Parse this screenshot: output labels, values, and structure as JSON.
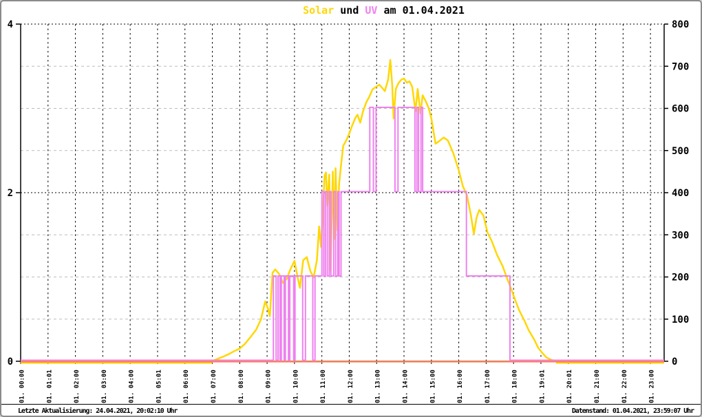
{
  "title": {
    "solar_label": "Solar",
    "und_label": " und ",
    "uv_label": "UV",
    "date_label": " am 01.04.2021"
  },
  "footer": {
    "left": "Letzte Aktualisierung: 24.04.2021, 20:02:10 Uhr",
    "right": "Datenstand: 01.04.2021, 23:59:07 Uhr"
  },
  "colors": {
    "solar": "#FFD700",
    "uv": "#EE82EE",
    "baseline": "#FF7F50",
    "grid_minor": "#BBBBBB",
    "grid_major": "#000000",
    "axis": "#000000",
    "text": "#000000",
    "border": "#8A8A8A"
  },
  "chart_data": {
    "type": "line",
    "title": "Solar und UV am 01.04.2021",
    "grid": "on",
    "x_axis": {
      "range_hours": [
        0,
        23.5
      ],
      "tick_labels": [
        "01. 00:00",
        "01. 01:01",
        "01. 02:00",
        "01. 03:00",
        "01. 04:00",
        "01. 05:01",
        "01. 06:00",
        "01. 07:00",
        "01. 08:00",
        "01. 09:00",
        "01. 10:00",
        "01. 11:00",
        "01. 12:00",
        "01. 13:00",
        "01. 14:00",
        "01. 15:00",
        "01. 16:00",
        "01. 17:00",
        "01. 18:00",
        "01. 19:01",
        "01. 20:01",
        "01. 21:00",
        "01. 22:00",
        "01. 23:00"
      ]
    },
    "y_left": {
      "range": [
        0,
        4
      ],
      "ticks": [
        0,
        2,
        4
      ]
    },
    "y_right": {
      "range": [
        0,
        800
      ],
      "ticks": [
        0,
        100,
        200,
        300,
        400,
        500,
        600,
        700,
        800
      ],
      "major_gridlines": [
        400,
        800
      ]
    },
    "series": [
      {
        "name": "Solar",
        "axis": "right",
        "style": "line",
        "points": [
          [
            0,
            0
          ],
          [
            6.9,
            0
          ],
          [
            7.05,
            2
          ],
          [
            7.2,
            6
          ],
          [
            7.4,
            11
          ],
          [
            7.6,
            17
          ],
          [
            7.8,
            24
          ],
          [
            8.0,
            30
          ],
          [
            8.2,
            42
          ],
          [
            8.4,
            58
          ],
          [
            8.6,
            75
          ],
          [
            8.78,
            100
          ],
          [
            8.93,
            142
          ],
          [
            9.03,
            125
          ],
          [
            9.1,
            107
          ],
          [
            9.2,
            210
          ],
          [
            9.3,
            218
          ],
          [
            9.45,
            206
          ],
          [
            9.58,
            186
          ],
          [
            9.72,
            196
          ],
          [
            9.85,
            218
          ],
          [
            10.0,
            238
          ],
          [
            10.12,
            198
          ],
          [
            10.2,
            174
          ],
          [
            10.32,
            240
          ],
          [
            10.45,
            247
          ],
          [
            10.58,
            214
          ],
          [
            10.7,
            199
          ],
          [
            10.82,
            240
          ],
          [
            10.9,
            320
          ],
          [
            10.97,
            271
          ],
          [
            11.05,
            370
          ],
          [
            11.1,
            440
          ],
          [
            11.15,
            448
          ],
          [
            11.2,
            368
          ],
          [
            11.27,
            443
          ],
          [
            11.32,
            215
          ],
          [
            11.4,
            450
          ],
          [
            11.45,
            290
          ],
          [
            11.5,
            458
          ],
          [
            11.57,
            310
          ],
          [
            11.63,
            420
          ],
          [
            11.7,
            465
          ],
          [
            11.78,
            511
          ],
          [
            11.9,
            525
          ],
          [
            12.0,
            540
          ],
          [
            12.1,
            558
          ],
          [
            12.22,
            577
          ],
          [
            12.3,
            585
          ],
          [
            12.4,
            566
          ],
          [
            12.5,
            592
          ],
          [
            12.62,
            614
          ],
          [
            12.72,
            626
          ],
          [
            12.85,
            645
          ],
          [
            13.0,
            652
          ],
          [
            13.1,
            656
          ],
          [
            13.2,
            649
          ],
          [
            13.3,
            641
          ],
          [
            13.42,
            668
          ],
          [
            13.5,
            715
          ],
          [
            13.57,
            655
          ],
          [
            13.62,
            576
          ],
          [
            13.7,
            646
          ],
          [
            13.8,
            660
          ],
          [
            13.9,
            668
          ],
          [
            14.0,
            671
          ],
          [
            14.1,
            661
          ],
          [
            14.2,
            664
          ],
          [
            14.3,
            651
          ],
          [
            14.42,
            593
          ],
          [
            14.5,
            646
          ],
          [
            14.6,
            588
          ],
          [
            14.68,
            631
          ],
          [
            14.8,
            616
          ],
          [
            14.9,
            601
          ],
          [
            15.0,
            576
          ],
          [
            15.15,
            516
          ],
          [
            15.3,
            523
          ],
          [
            15.45,
            531
          ],
          [
            15.6,
            524
          ],
          [
            15.8,
            494
          ],
          [
            16.0,
            453
          ],
          [
            16.15,
            415
          ],
          [
            16.3,
            394
          ],
          [
            16.45,
            344
          ],
          [
            16.55,
            302
          ],
          [
            16.65,
            341
          ],
          [
            16.75,
            359
          ],
          [
            16.9,
            346
          ],
          [
            17.05,
            305
          ],
          [
            17.2,
            286
          ],
          [
            17.4,
            252
          ],
          [
            17.6,
            226
          ],
          [
            17.75,
            199
          ],
          [
            17.9,
            174
          ],
          [
            18.05,
            147
          ],
          [
            18.2,
            122
          ],
          [
            18.4,
            96
          ],
          [
            18.55,
            74
          ],
          [
            18.75,
            52
          ],
          [
            18.9,
            32
          ],
          [
            19.05,
            20
          ],
          [
            19.2,
            9
          ],
          [
            19.4,
            3
          ],
          [
            19.6,
            0
          ],
          [
            23.5,
            0
          ]
        ]
      },
      {
        "name": "UV",
        "axis": "left",
        "style": "step",
        "segments": [
          [
            0,
            9.23,
            0
          ],
          [
            9.23,
            9.33,
            1
          ],
          [
            9.33,
            9.4,
            0
          ],
          [
            9.4,
            9.47,
            1
          ],
          [
            9.47,
            9.52,
            0
          ],
          [
            9.52,
            9.62,
            1
          ],
          [
            9.62,
            9.67,
            0
          ],
          [
            9.67,
            9.78,
            1
          ],
          [
            9.78,
            9.83,
            0
          ],
          [
            9.83,
            9.97,
            1
          ],
          [
            9.97,
            10.02,
            0
          ],
          [
            10.02,
            10.3,
            1
          ],
          [
            10.3,
            10.4,
            0
          ],
          [
            10.4,
            10.67,
            1
          ],
          [
            10.67,
            10.75,
            0
          ],
          [
            10.75,
            11.0,
            1
          ],
          [
            11.0,
            11.07,
            2
          ],
          [
            11.07,
            11.13,
            1
          ],
          [
            11.13,
            11.2,
            2
          ],
          [
            11.2,
            11.27,
            1
          ],
          [
            11.27,
            11.33,
            2
          ],
          [
            11.33,
            11.43,
            1
          ],
          [
            11.43,
            11.5,
            2
          ],
          [
            11.5,
            11.58,
            1
          ],
          [
            11.58,
            11.63,
            2
          ],
          [
            11.63,
            11.7,
            1
          ],
          [
            11.7,
            12.75,
            2
          ],
          [
            12.75,
            12.88,
            3
          ],
          [
            12.88,
            12.98,
            2
          ],
          [
            12.98,
            13.67,
            3
          ],
          [
            13.67,
            13.78,
            2
          ],
          [
            13.78,
            14.4,
            3
          ],
          [
            14.4,
            14.47,
            2
          ],
          [
            14.47,
            14.53,
            3
          ],
          [
            14.53,
            14.62,
            2
          ],
          [
            14.62,
            14.68,
            3
          ],
          [
            14.68,
            16.28,
            2
          ],
          [
            16.28,
            17.87,
            1
          ],
          [
            17.87,
            23.5,
            0
          ]
        ]
      },
      {
        "name": "zero-baseline",
        "axis": "right",
        "style": "line",
        "points": [
          [
            0,
            0
          ],
          [
            23.5,
            0
          ]
        ]
      }
    ]
  }
}
